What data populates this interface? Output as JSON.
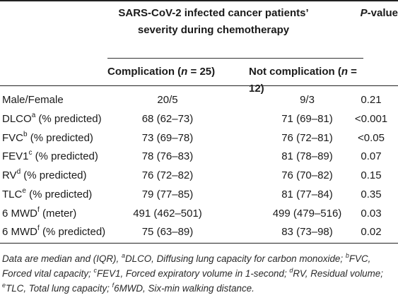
{
  "header": {
    "group_title": "SARS-CoV-2 infected cancer patients’ severity during chemotherapy",
    "p_value_label_italic": "P",
    "p_value_label_rest": "-value",
    "complication_prefix": "Complication (",
    "n_label": "n",
    "complication_suffix": " = 25)",
    "not_complication_prefix": "Not complication (",
    "not_complication_suffix": " = 12)"
  },
  "rows": [
    {
      "label": "Male/Female",
      "sup": "",
      "unit": "",
      "complication": "20/5",
      "not_complication": "9/3",
      "p_value": "0.21"
    },
    {
      "label": "DLCO",
      "sup": "a",
      "unit": " (% predicted)",
      "complication": "68 (62–73)",
      "not_complication": "71 (69–81)",
      "p_value": "<0.001"
    },
    {
      "label": "FVC",
      "sup": "b",
      "unit": " (% predicted)",
      "complication": "73 (69–78)",
      "not_complication": "76 (72–81)",
      "p_value": "<0.05"
    },
    {
      "label": "FEV1",
      "sup": "c",
      "unit": " (% predicted)",
      "complication": "78 (76–83)",
      "not_complication": "81 (78–89)",
      "p_value": "0.07"
    },
    {
      "label": "RV",
      "sup": "d",
      "unit": " (% predicted)",
      "complication": "76 (72–82)",
      "not_complication": "76 (70–82)",
      "p_value": "0.15"
    },
    {
      "label": "TLC",
      "sup": "e",
      "unit": " (% predicted)",
      "complication": "79 (77–85)",
      "not_complication": "81 (77–84)",
      "p_value": "0.35"
    },
    {
      "label": "6 MWD",
      "sup": "f",
      "unit": " (meter)",
      "complication": "491 (462–501)",
      "not_complication": "499 (479–516)",
      "p_value": "0.03"
    },
    {
      "label": "6 MWD",
      "sup": "f",
      "unit": " (% predicted)",
      "complication": "75 (63–89)",
      "not_complication": "83 (73–98)",
      "p_value": "0.02"
    }
  ],
  "footnote": [
    {
      "text": "Data are median and (IQR), "
    },
    {
      "sup": "a",
      "text": "DLCO, Diffusing lung capacity for carbon monoxide; "
    },
    {
      "sup": "b",
      "text": "FVC, Forced vital capacity; "
    },
    {
      "sup": "c",
      "text": "FEV1, Forced expiratory volume in 1-second; "
    },
    {
      "sup": "d",
      "text": "RV, Residual volume; "
    },
    {
      "sup": "e",
      "text": "TLC, Total lung capacity; "
    },
    {
      "sup": "f",
      "text": "6MWD, Six-min walking distance."
    }
  ]
}
